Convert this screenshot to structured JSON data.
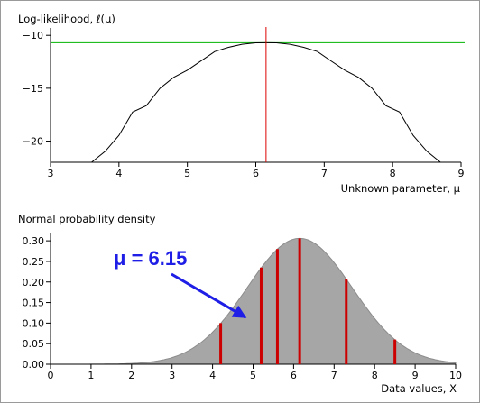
{
  "colors": {
    "curve": "#000000",
    "hline": "#00b400",
    "vline": "#dd0000",
    "density_fill": "#a6a6a6",
    "density_stroke": "#8c8c8c",
    "data_bars": "#cc0000",
    "annotation": "#1e1ee6"
  },
  "chart_data": [
    {
      "type": "line",
      "title": "Log-likelihood, ℓ(μ)",
      "xlabel": "Unknown parameter, μ",
      "ylabel": "",
      "xlim": [
        3,
        9
      ],
      "ylim": [
        -22,
        -9.3
      ],
      "xticks": [
        "3",
        "4",
        "5",
        "6",
        "7",
        "8",
        "9"
      ],
      "yticks": [
        "−10",
        "−15",
        "−20"
      ],
      "x": [
        3.6,
        3.8,
        4.0,
        4.2,
        4.4,
        4.6,
        4.8,
        5.0,
        5.2,
        5.4,
        5.6,
        5.8,
        6.0,
        6.15,
        6.3,
        6.5,
        6.7,
        6.9,
        7.1,
        7.3,
        7.5,
        7.7,
        7.9,
        8.1,
        8.3,
        8.5,
        8.7
      ],
      "y": [
        -22.0,
        -20.96,
        -19.46,
        -17.25,
        -16.65,
        -15.01,
        -13.97,
        -13.29,
        -12.42,
        -11.53,
        -11.13,
        -10.84,
        -10.71,
        -10.7,
        -10.71,
        -10.84,
        -11.13,
        -11.53,
        -12.42,
        -13.29,
        -13.97,
        -15.01,
        -16.65,
        -17.25,
        -19.46,
        -20.96,
        -22.0
      ],
      "reference_lines": {
        "max_loglik": -10.7,
        "mu_hat": 6.15
      }
    },
    {
      "type": "area",
      "title": "Normal probability density",
      "xlabel": "Data values, X",
      "ylabel": "",
      "xlim": [
        0,
        10
      ],
      "ylim": [
        0,
        0.32
      ],
      "xticks": [
        "0",
        "1",
        "2",
        "3",
        "4",
        "5",
        "6",
        "7",
        "8",
        "9",
        "10"
      ],
      "yticks": [
        "0.00",
        "0.05",
        "0.10",
        "0.15",
        "0.20",
        "0.25",
        "0.30"
      ],
      "density": {
        "mean": 6.15,
        "sd": 1.3,
        "peak": 0.306
      },
      "data_points": [
        {
          "x": 4.2,
          "density": 0.1
        },
        {
          "x": 5.2,
          "density": 0.235
        },
        {
          "x": 5.6,
          "density": 0.28
        },
        {
          "x": 6.15,
          "density": 0.306
        },
        {
          "x": 7.3,
          "density": 0.208
        },
        {
          "x": 8.5,
          "density": 0.06
        }
      ],
      "annotation": {
        "text": "μ = 6.15"
      }
    }
  ]
}
